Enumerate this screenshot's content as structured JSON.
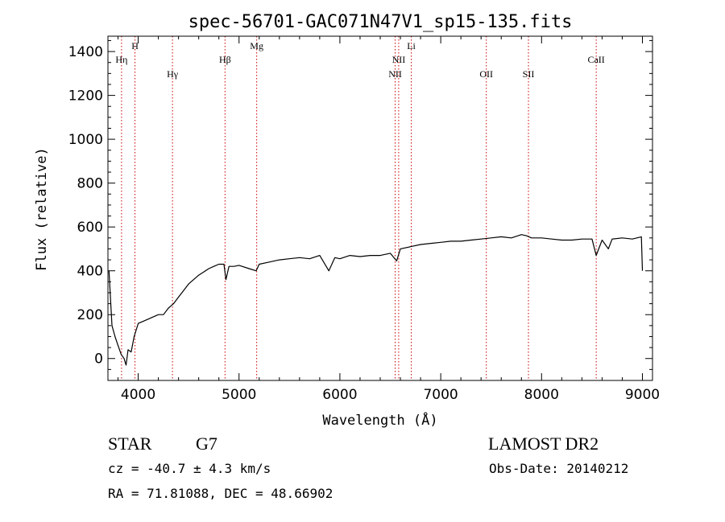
{
  "chart_data": {
    "type": "line",
    "title": "spec-56701-GAC071N47V1_sp15-135.fits",
    "xlabel": "Wavelength (Å)",
    "ylabel": "Flux (relative)",
    "xlim": [
      3700,
      9100
    ],
    "ylim": [
      -100,
      1470
    ],
    "xticks": [
      4000,
      5000,
      6000,
      7000,
      8000,
      9000
    ],
    "xtick_labels": [
      "4000",
      "5000",
      "6000",
      "7000",
      "8000",
      "9000"
    ],
    "yticks": [
      0,
      200,
      400,
      600,
      800,
      1000,
      1200,
      1400
    ],
    "ytick_labels": [
      "0",
      "200",
      "400",
      "600",
      "800",
      "1000",
      "1200",
      "1400"
    ],
    "series": [
      {
        "color": "#000000",
        "x": [
          3710,
          3740,
          3770,
          3800,
          3830,
          3860,
          3880,
          3900,
          3930,
          3960,
          4000,
          4050,
          4100,
          4150,
          4200,
          4250,
          4300,
          4350,
          4400,
          4450,
          4500,
          4550,
          4600,
          4650,
          4700,
          4750,
          4800,
          4850,
          4870,
          4900,
          4950,
          5000,
          5100,
          5170,
          5200,
          5300,
          5400,
          5500,
          5600,
          5700,
          5800,
          5890,
          5950,
          6000,
          6100,
          6200,
          6300,
          6400,
          6500,
          6563,
          6600,
          6700,
          6800,
          6900,
          7000,
          7100,
          7200,
          7300,
          7400,
          7500,
          7600,
          7700,
          7800,
          7850,
          7900,
          8000,
          8100,
          8200,
          8300,
          8400,
          8500,
          8542,
          8600,
          8662,
          8700,
          8800,
          8900,
          8990,
          9000
        ],
        "y": [
          400,
          150,
          100,
          60,
          20,
          0,
          -30,
          40,
          30,
          100,
          160,
          170,
          180,
          190,
          200,
          200,
          230,
          250,
          280,
          310,
          340,
          360,
          380,
          395,
          410,
          420,
          430,
          430,
          360,
          420,
          420,
          425,
          410,
          400,
          430,
          440,
          450,
          455,
          460,
          455,
          470,
          400,
          460,
          455,
          470,
          465,
          470,
          470,
          480,
          445,
          500,
          510,
          520,
          525,
          530,
          535,
          535,
          540,
          545,
          550,
          555,
          550,
          565,
          560,
          550,
          550,
          545,
          540,
          540,
          545,
          545,
          470,
          540,
          500,
          545,
          550,
          545,
          555,
          400
        ],
        "points_note": ""
      }
    ],
    "line_markers": [
      {
        "wavelength": 3835,
        "label": "Hη",
        "row": "top"
      },
      {
        "wavelength": 3968,
        "label": "H",
        "row": "upper"
      },
      {
        "wavelength": 4340,
        "label": "Hγ",
        "row": "lower"
      },
      {
        "wavelength": 4861,
        "label": "Hβ",
        "row": "middle"
      },
      {
        "wavelength": 5175,
        "label": "Mg",
        "row": "upper"
      },
      {
        "wavelength": 6548,
        "label": "NII",
        "row": "lower"
      },
      {
        "wavelength": 6583,
        "label": "NII",
        "row": "middle"
      },
      {
        "wavelength": 6708,
        "label": "Li",
        "row": "upper"
      },
      {
        "wavelength": 7452,
        "label": "OII",
        "row": "lower"
      },
      {
        "wavelength": 7870,
        "label": "SII",
        "row": "lower"
      },
      {
        "wavelength": 8542,
        "label": "CaII",
        "row": "middle"
      }
    ],
    "marker_color": "#cc0000",
    "grid": false
  },
  "info": {
    "class_label": "STAR",
    "subclass_label": "G7",
    "cz_text": "cz = -40.7 ± 4.3 km/s",
    "coords_text": "RA =  71.81088, DEC =  48.66902",
    "survey_label": "LAMOST DR2",
    "obs_date_text": "Obs-Date: 20140212"
  }
}
